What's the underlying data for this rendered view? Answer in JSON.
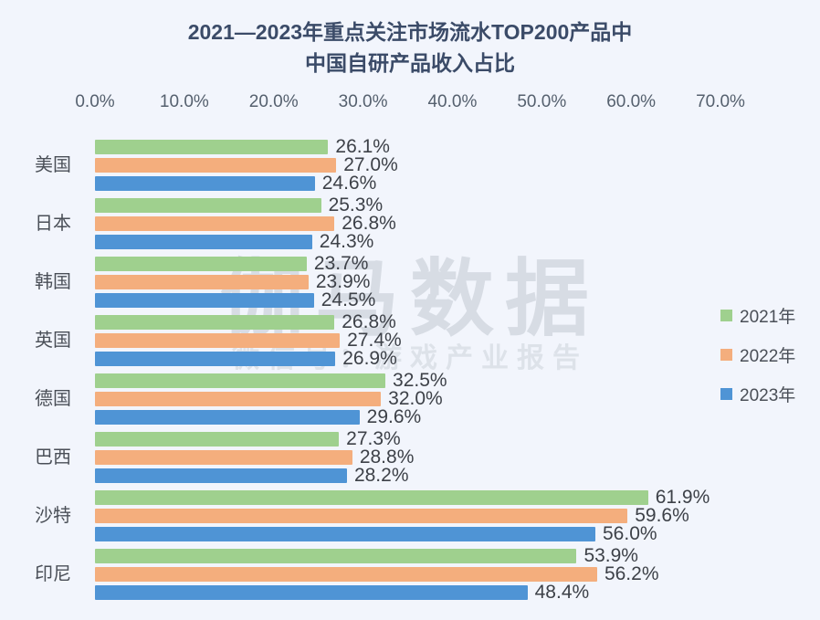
{
  "title": {
    "line1": "2021—2023年重点关注市场流水TOP200产品中",
    "line2": "中国自研产品收入占比"
  },
  "watermark": {
    "line1": "伽马数据",
    "line2": "微信号：游戏产业报告"
  },
  "chart_data": {
    "type": "bar",
    "orientation": "horizontal",
    "title": "2021—2023年重点关注市场流水TOP200产品中中国自研产品收入占比",
    "categories": [
      "美国",
      "日本",
      "韩国",
      "英国",
      "德国",
      "巴西",
      "沙特",
      "印尼"
    ],
    "series": [
      {
        "name": "2021年",
        "color": "#9fd08e",
        "values": [
          26.1,
          25.3,
          23.7,
          26.8,
          32.5,
          27.3,
          61.9,
          53.9
        ]
      },
      {
        "name": "2022年",
        "color": "#f4ae7d",
        "values": [
          27.0,
          26.8,
          23.9,
          27.4,
          32.0,
          28.8,
          59.6,
          56.2
        ]
      },
      {
        "name": "2023年",
        "color": "#4f94d5",
        "values": [
          24.6,
          24.3,
          24.5,
          26.9,
          29.6,
          28.2,
          56.0,
          48.4
        ]
      }
    ],
    "value_suffix": "%",
    "xlim": [
      0,
      70
    ],
    "x_ticks": [
      "0.0%",
      "10.0%",
      "20.0%",
      "30.0%",
      "40.0%",
      "50.0%",
      "60.0%",
      "70.0%"
    ],
    "grid": false,
    "legend_position": "right",
    "value_labels": true
  },
  "colors": {
    "background": "#f2f5fc",
    "title_text": "#3b4b68",
    "axis_text": "#55606e",
    "label_text": "#3d4148",
    "watermark": "#d7dce4",
    "series_2021": "#9fd08e",
    "series_2022": "#f4ae7d",
    "series_2023": "#4f94d5"
  }
}
